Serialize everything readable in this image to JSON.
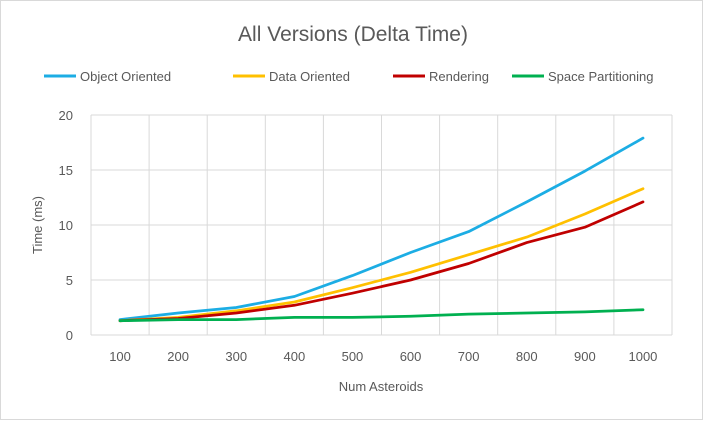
{
  "chart_data": {
    "type": "line",
    "title": "All Versions (Delta Time)",
    "xlabel": "Num Asteroids",
    "ylabel": "Time (ms)",
    "categories": [
      "100",
      "200",
      "300",
      "400",
      "500",
      "600",
      "700",
      "800",
      "900",
      "1000"
    ],
    "ylim": [
      0,
      20
    ],
    "yticks": [
      "0",
      "5",
      "10",
      "15",
      "20"
    ],
    "grid": true,
    "legend_position": "top",
    "series": [
      {
        "name": "Object Oriented",
        "color": "#1CADE4",
        "values": [
          1.4,
          2.0,
          2.5,
          3.5,
          5.4,
          7.5,
          9.4,
          12.1,
          14.9,
          17.9
        ]
      },
      {
        "name": "Data Oriented",
        "color": "#FFC000",
        "values": [
          1.3,
          1.6,
          2.2,
          3.0,
          4.3,
          5.7,
          7.3,
          8.9,
          11.0,
          13.3
        ]
      },
      {
        "name": "Rendering",
        "color": "#C00000",
        "values": [
          1.3,
          1.5,
          2.0,
          2.7,
          3.8,
          5.0,
          6.5,
          8.4,
          9.8,
          12.1
        ]
      },
      {
        "name": "Space Partitioning",
        "color": "#00B050",
        "values": [
          1.3,
          1.4,
          1.4,
          1.6,
          1.6,
          1.7,
          1.9,
          2.0,
          2.1,
          2.3
        ]
      }
    ]
  }
}
